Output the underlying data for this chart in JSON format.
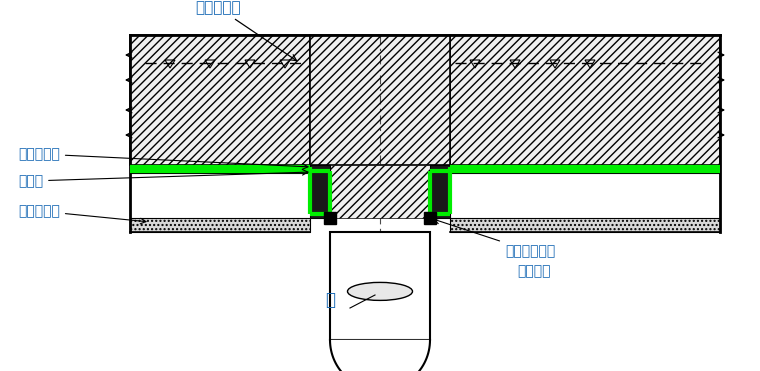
{
  "bg_color": "#ffffff",
  "line_color": "#000000",
  "green_color": "#00ee00",
  "annotation_color": "#1a6ab5",
  "labels": {
    "pile_rebar": "桩受力钢筋",
    "add_waterproof1": "附加防水层",
    "waterproof": "防水层",
    "add_waterproof2": "附加防水层",
    "pile": "桩",
    "swell_strip": "遇水膨胀胶条",
    "around_pile": "绕桩一圈"
  },
  "fig_width": 7.6,
  "fig_height": 3.71,
  "dpi": 100
}
